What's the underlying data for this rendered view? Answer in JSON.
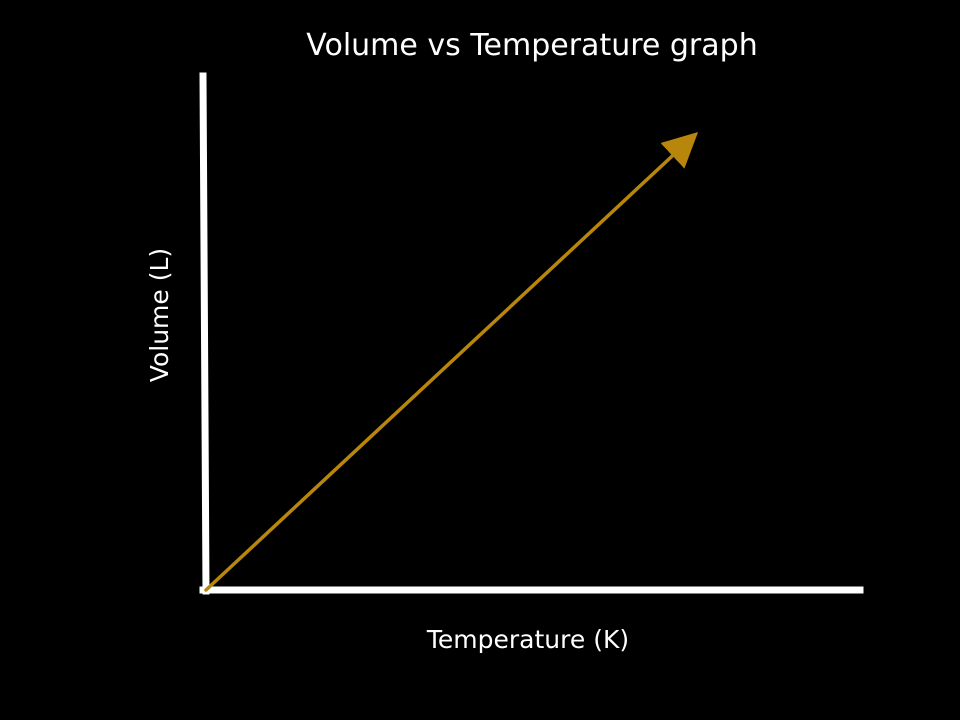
{
  "chart_data": {
    "type": "line",
    "title": "Volume vs Temperature  graph",
    "xlabel": "Temperature (K)",
    "ylabel": "Volume (L)",
    "x": [
      0,
      1
    ],
    "series": [
      {
        "values": [
          0,
          1
        ]
      }
    ],
    "xlim": [
      0,
      1.35
    ],
    "ylim": [
      0,
      1.14
    ],
    "grid": false,
    "arrowhead": true,
    "colors": {
      "background": "#000000",
      "axes": "#ffffff",
      "line": "#b8860b",
      "text": "#ffffff"
    }
  }
}
